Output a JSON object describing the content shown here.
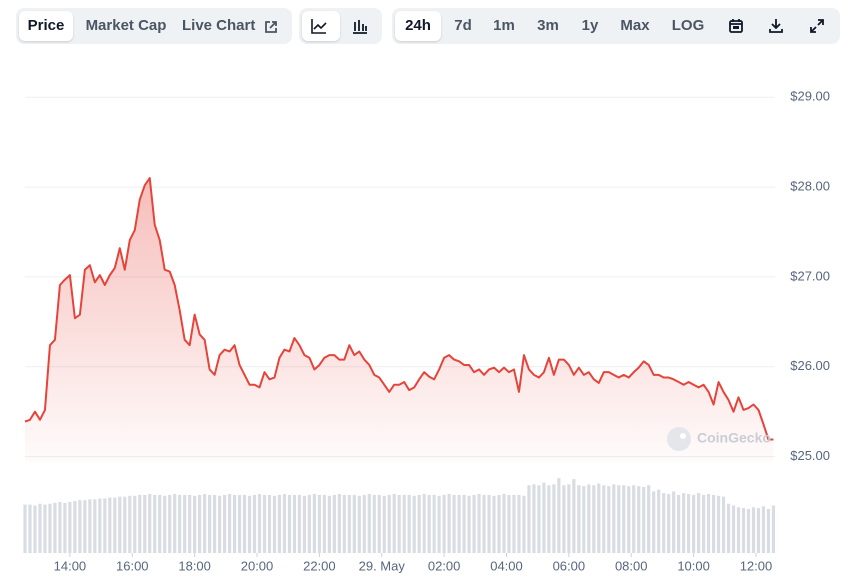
{
  "toolbar": {
    "tabs": [
      "Price",
      "Market Cap",
      "Live Chart"
    ],
    "ranges": [
      "24h",
      "7d",
      "1m",
      "3m",
      "1y",
      "Max",
      "LOG"
    ]
  },
  "watermark": "CoinGecko",
  "chart_data": {
    "type": "line",
    "x": [
      12.56,
      12.72,
      12.88,
      13.04,
      13.2,
      13.36,
      13.52,
      13.68,
      13.84,
      14,
      14.16,
      14.32,
      14.48,
      14.64,
      14.8,
      14.96,
      15.12,
      15.28,
      15.44,
      15.6,
      15.76,
      15.92,
      16.08,
      16.24,
      16.4,
      16.56,
      16.72,
      16.88,
      17.04,
      17.2,
      17.36,
      17.52,
      17.68,
      17.84,
      18,
      18.16,
      18.32,
      18.48,
      18.64,
      18.8,
      18.96,
      19.12,
      19.28,
      19.44,
      19.6,
      19.76,
      19.92,
      20.08,
      20.24,
      20.4,
      20.56,
      20.72,
      20.88,
      21.04,
      21.2,
      21.36,
      21.52,
      21.68,
      21.84,
      22,
      22.16,
      22.32,
      22.48,
      22.64,
      22.8,
      22.96,
      23.12,
      23.28,
      23.44,
      23.6,
      23.76,
      23.92,
      24.08,
      24.24,
      24.4,
      24.56,
      24.72,
      24.88,
      25.04,
      25.2,
      25.36,
      25.52,
      25.68,
      25.84,
      26,
      26.16,
      26.32,
      26.48,
      26.64,
      26.8,
      26.96,
      27.12,
      27.28,
      27.44,
      27.6,
      27.76,
      27.92,
      28.08,
      28.24,
      28.4,
      28.56,
      28.72,
      28.88,
      29.04,
      29.2,
      29.36,
      29.52,
      29.68,
      29.84,
      30,
      30.16,
      30.32,
      30.48,
      30.64,
      30.8,
      30.96,
      31.12,
      31.28,
      31.44,
      31.6,
      31.76,
      31.92,
      32.08,
      32.24,
      32.4,
      32.56,
      32.72,
      32.88,
      33.04,
      33.2,
      33.36,
      33.52,
      33.68,
      33.84,
      34,
      34.16,
      34.32,
      34.48,
      34.64,
      34.8,
      34.96,
      35.12,
      35.28,
      35.44,
      35.6,
      35.76,
      35.92,
      36.08,
      36.24,
      36.4,
      36.56
    ],
    "series": [
      {
        "name": "Price",
        "color": "#e5443b",
        "values": [
          25.39,
          25.41,
          25.5,
          25.41,
          25.52,
          26.24,
          26.3,
          26.91,
          26.97,
          27.02,
          26.54,
          26.58,
          27.08,
          27.13,
          26.94,
          27.02,
          26.91,
          27.02,
          27.1,
          27.32,
          27.08,
          27.41,
          27.52,
          27.86,
          28.02,
          28.1,
          27.58,
          27.41,
          27.08,
          27.06,
          26.91,
          26.63,
          26.3,
          26.24,
          26.58,
          26.36,
          26.3,
          25.97,
          25.91,
          26.13,
          26.19,
          26.17,
          26.24,
          26.02,
          25.91,
          25.8,
          25.8,
          25.77,
          25.94,
          25.86,
          25.88,
          26.1,
          26.19,
          26.17,
          26.32,
          26.24,
          26.13,
          26.1,
          25.97,
          26.02,
          26.1,
          26.13,
          26.13,
          26.08,
          26.08,
          26.24,
          26.13,
          26.17,
          26.08,
          26.02,
          25.91,
          25.88,
          25.8,
          25.72,
          25.8,
          25.8,
          25.83,
          25.74,
          25.77,
          25.86,
          25.94,
          25.89,
          25.86,
          25.97,
          26.1,
          26.13,
          26.08,
          26.06,
          26.02,
          26.02,
          25.94,
          25.97,
          25.91,
          25.97,
          25.99,
          25.94,
          25.99,
          25.94,
          25.97,
          25.72,
          26.13,
          25.97,
          25.91,
          25.88,
          25.94,
          26.1,
          25.91,
          26.08,
          26.08,
          26.02,
          25.91,
          25.99,
          25.91,
          25.94,
          25.86,
          25.82,
          25.94,
          25.94,
          25.91,
          25.88,
          25.91,
          25.88,
          25.94,
          25.99,
          26.06,
          26.02,
          25.91,
          25.91,
          25.88,
          25.88,
          25.86,
          25.83,
          25.8,
          25.83,
          25.8,
          25.77,
          25.8,
          25.72,
          25.58,
          25.83,
          25.72,
          25.63,
          25.5,
          25.66,
          25.52,
          25.54,
          25.58,
          25.52,
          25.36,
          25.19,
          25.19
        ]
      },
      {
        "name": "Volume",
        "color": "#d9dde3",
        "axis": "y2",
        "values": [
          55,
          55,
          54,
          56,
          55,
          56,
          57,
          58,
          57,
          58,
          59,
          60,
          60,
          61,
          61,
          62,
          62,
          63,
          63,
          64,
          64,
          65,
          65,
          66,
          66,
          67,
          66,
          66,
          65,
          66,
          67,
          66,
          66,
          66,
          65,
          66,
          67,
          66,
          66,
          65,
          66,
          67,
          66,
          66,
          66,
          65,
          66,
          67,
          66,
          66,
          65,
          66,
          67,
          66,
          66,
          66,
          65,
          66,
          67,
          66,
          66,
          65,
          66,
          67,
          66,
          66,
          66,
          65,
          66,
          67,
          66,
          66,
          65,
          66,
          67,
          66,
          66,
          66,
          65,
          66,
          67,
          66,
          66,
          65,
          66,
          67,
          66,
          66,
          66,
          65,
          66,
          67,
          66,
          66,
          65,
          66,
          67,
          66,
          66,
          66,
          65,
          77,
          78,
          77,
          80,
          77,
          78,
          85,
          77,
          78,
          84,
          77,
          76,
          78,
          77,
          79,
          77,
          76,
          78,
          77,
          77,
          76,
          77,
          76,
          75,
          77,
          70,
          72,
          68,
          67,
          70,
          66,
          68,
          67,
          66,
          68,
          66,
          67,
          66,
          65,
          64,
          56,
          54,
          52,
          51,
          50,
          52,
          51,
          53,
          50,
          54
        ]
      }
    ],
    "xlim": [
      12.56,
      36.61
    ],
    "xticks": [
      {
        "value": 14,
        "label": "14:00"
      },
      {
        "value": 16,
        "label": "16:00"
      },
      {
        "value": 18,
        "label": "18:00"
      },
      {
        "value": 20,
        "label": "20:00"
      },
      {
        "value": 22,
        "label": "22:00"
      },
      {
        "value": 24,
        "label": "29. May"
      },
      {
        "value": 26,
        "label": "02:00"
      },
      {
        "value": 28,
        "label": "04:00"
      },
      {
        "value": 30,
        "label": "06:00"
      },
      {
        "value": 32,
        "label": "08:00"
      },
      {
        "value": 34,
        "label": "10:00"
      },
      {
        "value": 36,
        "label": "12:00"
      }
    ],
    "ylim": [
      24.94,
      29.47
    ],
    "yticks": [
      {
        "value": 25,
        "label": "$25.00"
      },
      {
        "value": 26,
        "label": "$26.00"
      },
      {
        "value": 27,
        "label": "$27.00"
      },
      {
        "value": 28,
        "label": "$28.00"
      },
      {
        "value": 29,
        "label": "$29.00"
      }
    ],
    "y2lim": [
      0,
      100
    ],
    "grid": true
  }
}
